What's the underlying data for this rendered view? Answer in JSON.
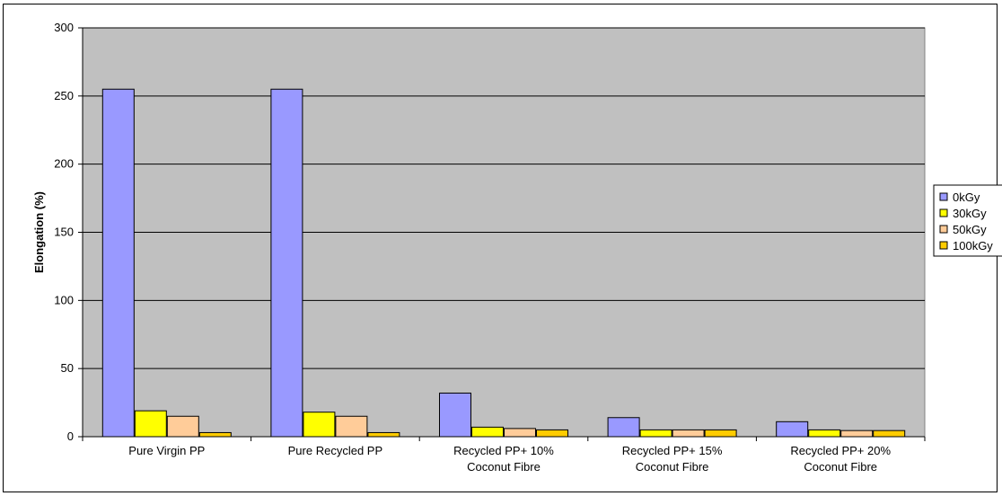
{
  "chart_data": {
    "type": "bar",
    "title": "",
    "xlabel": "",
    "ylabel": "Elongation  (%)",
    "ylim": [
      0,
      300
    ],
    "yticks": [
      0,
      50,
      100,
      150,
      200,
      250,
      300
    ],
    "grid": true,
    "legend_position": "right",
    "categories": [
      [
        "Pure Virgin PP"
      ],
      [
        "Pure Recycled PP"
      ],
      [
        "Recycled PP+ 10%",
        "Coconut Fibre"
      ],
      [
        "Recycled PP+ 15%",
        "Coconut Fibre"
      ],
      [
        "Recycled PP+ 20%",
        "Coconut Fibre"
      ]
    ],
    "series": [
      {
        "name": "0kGy",
        "color": "#9999ff",
        "values": [
          255,
          255,
          32,
          14,
          11
        ]
      },
      {
        "name": "30kGy",
        "color": "#ffff00",
        "values": [
          19,
          18,
          7,
          5,
          5
        ]
      },
      {
        "name": "50kGy",
        "color": "#ffcc99",
        "values": [
          15,
          15,
          6,
          5,
          4.5
        ]
      },
      {
        "name": "100kGy",
        "color": "#ffcc00",
        "values": [
          3,
          3,
          5,
          5,
          4.5
        ]
      }
    ],
    "plot_background": "#c0c0c0"
  }
}
